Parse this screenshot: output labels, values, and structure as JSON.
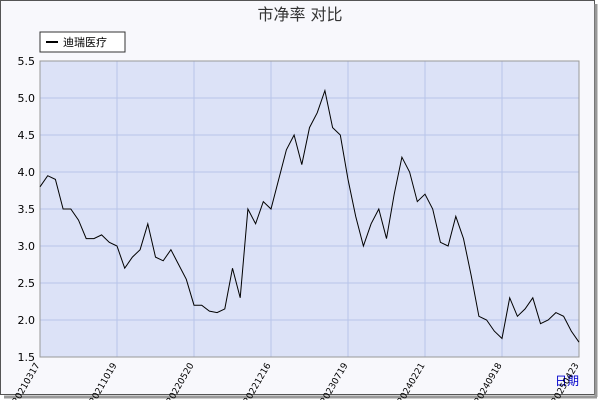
{
  "chart_data": {
    "type": "line",
    "title": "市净率  对比",
    "x_label": "日期",
    "categories": [
      "20210317",
      null,
      null,
      null,
      null,
      null,
      null,
      null,
      null,
      null,
      "20211019",
      null,
      null,
      null,
      null,
      null,
      null,
      null,
      null,
      null,
      "20220520",
      null,
      null,
      null,
      null,
      null,
      null,
      null,
      null,
      null,
      "20221216",
      null,
      null,
      null,
      null,
      null,
      null,
      null,
      null,
      null,
      "20230719",
      null,
      null,
      null,
      null,
      null,
      null,
      null,
      null,
      null,
      "20240221",
      null,
      null,
      null,
      null,
      null,
      null,
      null,
      null,
      null,
      "20240918",
      null,
      null,
      null,
      null,
      null,
      null,
      null,
      null,
      null,
      "20250423"
    ],
    "series": [
      {
        "name": "迪瑞医疗",
        "color": "#000000",
        "values": [
          3.8,
          3.95,
          3.9,
          3.5,
          3.5,
          3.35,
          3.1,
          3.1,
          3.15,
          3.05,
          3.0,
          2.7,
          2.85,
          2.95,
          3.3,
          2.85,
          2.8,
          2.95,
          2.75,
          2.55,
          2.2,
          2.2,
          2.12,
          2.1,
          2.15,
          2.7,
          2.3,
          3.5,
          3.3,
          3.6,
          3.5,
          3.9,
          4.3,
          4.5,
          4.1,
          4.6,
          4.8,
          5.1,
          4.6,
          4.5,
          3.9,
          3.4,
          3.0,
          3.3,
          3.5,
          3.1,
          3.7,
          4.2,
          4.0,
          3.6,
          3.7,
          3.5,
          3.05,
          3.0,
          3.4,
          3.1,
          2.6,
          2.05,
          2.0,
          1.85,
          1.75,
          2.3,
          2.05,
          2.15,
          2.3,
          1.95,
          2.0,
          2.1,
          2.05,
          1.85,
          1.7
        ]
      }
    ],
    "ylim": [
      1.5,
      5.5
    ],
    "yticks": [
      1.5,
      {
        "value": 2,
        "label": "2.0"
      },
      2.5,
      {
        "value": 3,
        "label": "3.0"
      },
      3.5,
      {
        "value": 4,
        "label": "4.0"
      },
      4.5,
      {
        "value": 5,
        "label": "5.0"
      },
      5.5
    ],
    "grid": true,
    "legend": "top-left"
  }
}
